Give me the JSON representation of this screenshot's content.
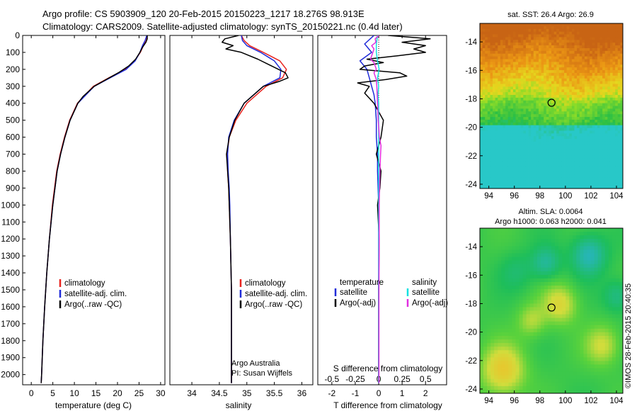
{
  "title_line1": "Argo profile: CS 5903909_120 20-Feb-2015 20150223_1217 18.276S 98.913E",
  "title_line2": "Climatology: CARS2009. Satellite-adjusted climatology: synTS_20150221.nc (0.4d later)",
  "colors": {
    "clim": "#e8231e",
    "sat": "#1f2bd8",
    "argo": "#000000",
    "sal_sat": "#12e0e0",
    "sal_argo": "#e02ee0"
  },
  "chart_data": [
    {
      "type": "line",
      "id": "temperature",
      "xlabel": "temperature (deg C)",
      "ylabel": "",
      "xlim": [
        -2,
        31
      ],
      "ylim": [
        2060,
        0
      ],
      "xticks": [
        0,
        5,
        10,
        15,
        20,
        25,
        30
      ],
      "yticks": [
        0,
        100,
        200,
        300,
        400,
        500,
        600,
        700,
        800,
        900,
        1000,
        1100,
        1200,
        1300,
        1400,
        1500,
        1600,
        1700,
        1800,
        1900,
        2000
      ],
      "legend": [
        "climatology",
        "satellite-adj. clim.",
        "Argo(..raw -QC)"
      ],
      "series": [
        {
          "name": "climatology",
          "depth": [
            0,
            30,
            60,
            100,
            150,
            200,
            250,
            300,
            400,
            500,
            600,
            700,
            800,
            1000,
            1200,
            1400,
            1600,
            1800,
            2000,
            2050
          ],
          "values": [
            26.9,
            26.7,
            26.0,
            25.3,
            24.0,
            21.8,
            18.0,
            14.4,
            10.7,
            8.9,
            7.7,
            6.7,
            5.9,
            4.9,
            4.2,
            3.6,
            3.1,
            2.7,
            2.4,
            2.3
          ]
        },
        {
          "name": "satellite-adj. clim.",
          "depth": [
            0,
            30,
            60,
            100,
            150,
            200,
            250,
            300,
            400,
            500,
            600,
            700,
            800,
            1000,
            1200,
            1400,
            1600,
            1800,
            2000,
            2050
          ],
          "values": [
            26.8,
            26.4,
            25.8,
            25.2,
            24.1,
            22.0,
            18.3,
            14.6,
            10.8,
            9.0,
            7.8,
            6.8,
            6.0,
            5.0,
            4.2,
            3.6,
            3.1,
            2.7,
            2.4,
            2.3
          ]
        },
        {
          "name": "Argo(..raw -QC)",
          "depth": [
            0,
            20,
            40,
            70,
            100,
            140,
            180,
            220,
            260,
            300,
            360,
            400,
            500,
            600,
            700,
            800,
            1000,
            1200,
            1400,
            1600,
            1800,
            2000,
            2050
          ],
          "values": [
            26.9,
            26.9,
            26.6,
            25.8,
            25.2,
            24.2,
            22.6,
            20.2,
            17.4,
            14.6,
            12.0,
            10.8,
            9.0,
            7.8,
            6.8,
            6.0,
            5.0,
            4.2,
            3.6,
            3.1,
            2.7,
            2.4,
            2.3
          ]
        }
      ]
    },
    {
      "type": "line",
      "id": "salinity",
      "xlabel": "salinity",
      "xlim": [
        33.6,
        36.2
      ],
      "ylim": [
        2060,
        0
      ],
      "xticks": [
        34,
        34.5,
        35,
        35.5,
        36
      ],
      "legend": [
        "climatology",
        "satellite-adj. clim.",
        "Argo(..raw -QC)"
      ],
      "annotation": [
        "Argo Australia",
        "PI: Susan Wijffels"
      ],
      "series": [
        {
          "name": "climatology",
          "depth": [
            0,
            30,
            60,
            100,
            150,
            200,
            250,
            300,
            400,
            500,
            600,
            700,
            800,
            900,
            1000,
            1200,
            1500,
            2050
          ],
          "values": [
            34.9,
            34.95,
            35.05,
            35.3,
            35.6,
            35.72,
            35.65,
            35.35,
            35.0,
            34.8,
            34.68,
            34.64,
            34.65,
            34.67,
            34.68,
            34.7,
            34.72,
            34.72
          ]
        },
        {
          "name": "satellite-adj. clim.",
          "depth": [
            0,
            30,
            60,
            100,
            150,
            200,
            250,
            300,
            400,
            500,
            600,
            700,
            800,
            900,
            1000,
            1200,
            1500,
            2050
          ],
          "values": [
            34.9,
            34.92,
            35.0,
            35.25,
            35.5,
            35.62,
            35.6,
            35.3,
            34.95,
            34.77,
            34.67,
            34.65,
            34.66,
            34.68,
            34.69,
            34.7,
            34.72,
            34.72
          ]
        },
        {
          "name": "Argo(..raw -QC)",
          "depth": [
            0,
            20,
            40,
            60,
            80,
            100,
            140,
            180,
            220,
            250,
            270,
            300,
            400,
            500,
            600,
            700,
            800,
            900,
            1000,
            1200,
            1500,
            2050
          ],
          "values": [
            34.85,
            34.6,
            34.55,
            34.75,
            34.62,
            34.9,
            35.2,
            35.45,
            35.7,
            35.75,
            35.6,
            35.3,
            34.95,
            34.78,
            34.68,
            34.63,
            34.65,
            34.67,
            34.68,
            34.7,
            34.72,
            34.72
          ]
        }
      ]
    },
    {
      "type": "line",
      "id": "difference",
      "xlabel_top": "S difference from climatology",
      "xlabel": "T difference from climatology",
      "xlim": [
        -2.6,
        2.9
      ],
      "ylim": [
        2060,
        0
      ],
      "xticks": [
        -2,
        -1,
        0,
        1,
        2
      ],
      "sticks_labels": [
        "-0.5",
        "-0.25",
        "0",
        "0.25",
        "0.5"
      ],
      "sticks_pos": [
        -2,
        -1,
        0,
        1,
        2
      ],
      "legend_titles": [
        "temperature",
        "salinity"
      ],
      "legend": [
        "satellite",
        "Argo(-adj)",
        "satellite",
        "Argo(-adj)"
      ],
      "series": [
        {
          "name": "temperature satellite",
          "depth": [
            0,
            50,
            100,
            150,
            200,
            250,
            300,
            350,
            400,
            500,
            600,
            700,
            800,
            1000,
            1200,
            1500,
            2050
          ],
          "values": [
            -0.2,
            -0.6,
            -0.3,
            -0.8,
            -0.5,
            -0.4,
            -0.3,
            -0.2,
            -0.15,
            -0.1,
            -0.1,
            -0.05,
            -0.05,
            0,
            0,
            0,
            0
          ]
        },
        {
          "name": "temperature Argo(-adj)",
          "depth": [
            0,
            20,
            40,
            60,
            80,
            100,
            120,
            140,
            160,
            180,
            200,
            220,
            240,
            260,
            280,
            300,
            340,
            400,
            500,
            600,
            700,
            800,
            900,
            1000,
            1200,
            1500,
            2050
          ],
          "values": [
            0.4,
            2.2,
            1.0,
            2.0,
            1.5,
            2.0,
            0.8,
            -0.5,
            0.2,
            -0.6,
            -0.8,
            0.9,
            1.2,
            0.3,
            -0.9,
            -0.4,
            -0.6,
            -0.2,
            0.2,
            0.1,
            -0.1,
            0.1,
            0.05,
            -0.05,
            0.02,
            0,
            0
          ]
        },
        {
          "name": "salinity satellite",
          "depth": [
            0,
            50,
            100,
            150,
            200,
            250,
            300,
            350,
            400,
            500,
            600,
            700,
            800,
            900,
            1000,
            1200,
            1500,
            2050
          ],
          "values": [
            -0.05,
            -0.1,
            -0.1,
            -0.05,
            0.02,
            -0.05,
            0,
            -0.03,
            0,
            0,
            0,
            0,
            0,
            0,
            0,
            0,
            0,
            0
          ]
        },
        {
          "name": "salinity Argo(-adj)",
          "depth": [
            0,
            20,
            40,
            60,
            80,
            100,
            120,
            140,
            160,
            180,
            200,
            220,
            260,
            300,
            400,
            500,
            600,
            650,
            700,
            800,
            1000,
            1200,
            1500,
            2050
          ],
          "values": [
            0,
            -0.15,
            -0.12,
            -0.3,
            -0.2,
            -0.25,
            -0.3,
            -0.35,
            -0.2,
            -0.15,
            -0.1,
            -0.2,
            -0.1,
            -0.08,
            -0.05,
            -0.02,
            0.03,
            0.1,
            0.08,
            0.05,
            0.02,
            0.02,
            0.01,
            0.01
          ]
        }
      ]
    },
    {
      "type": "heatmap",
      "id": "sst_map",
      "title": "sat. SST: 26.4  Argo: 26.9",
      "xlim": [
        93.3,
        104.5
      ],
      "ylim": [
        -24.3,
        -12.7
      ],
      "xticks": [
        94,
        96,
        98,
        100,
        102,
        104
      ],
      "yticks": [
        -14,
        -16,
        -18,
        -20,
        -22,
        -24
      ],
      "marker": {
        "lon": 98.913,
        "lat": -18.276
      }
    },
    {
      "type": "heatmap",
      "id": "sla_map",
      "title_line1": "Altim. SLA: 0.0064",
      "title_line2": "Argo h1000: 0.063  h2000: 0.041",
      "xlim": [
        93.3,
        104.5
      ],
      "ylim": [
        -24.3,
        -12.7
      ],
      "xticks": [
        94,
        96,
        98,
        100,
        102,
        104
      ],
      "yticks": [
        -14,
        -16,
        -18,
        -20,
        -22,
        -24
      ],
      "marker": {
        "lon": 98.913,
        "lat": -18.276
      }
    }
  ],
  "credit": "©IMOS 28-Feb-2015 20:40:35"
}
